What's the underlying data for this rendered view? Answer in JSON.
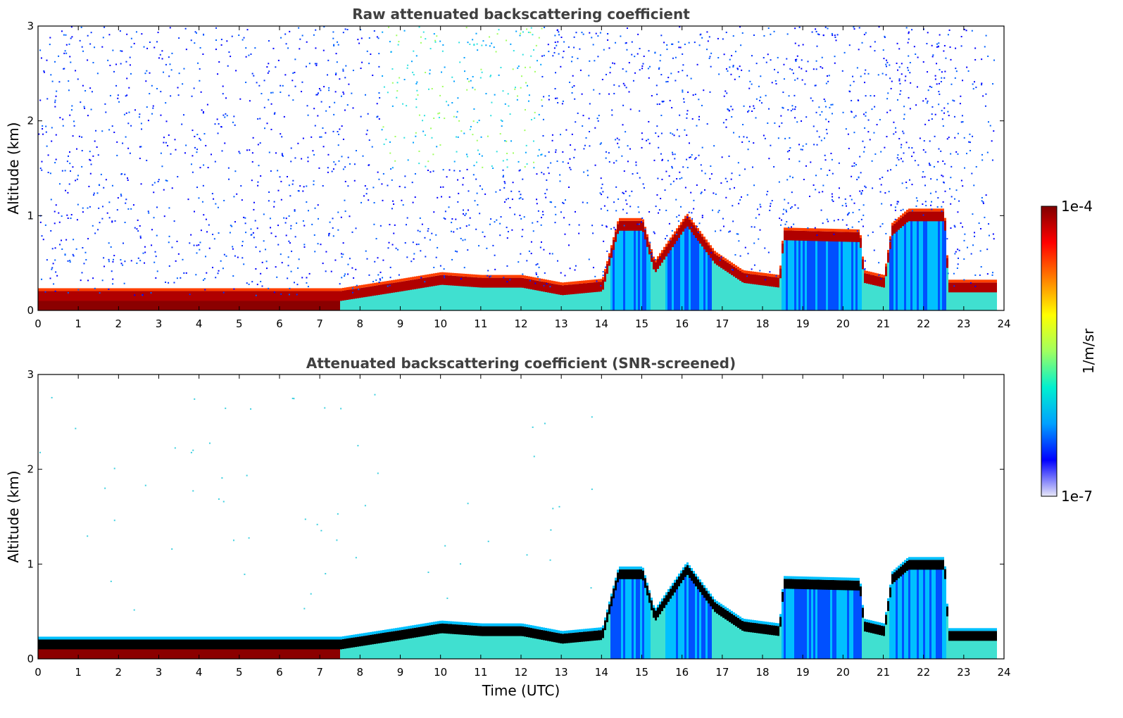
{
  "chart_data": [
    {
      "type": "heatmap",
      "title": "Raw attenuated backscattering coefficient",
      "xlabel": "",
      "ylabel": "Altitude (km)",
      "xlim": [
        0,
        24
      ],
      "ylim": [
        0,
        3
      ],
      "xticks": [
        "0",
        "1",
        "2",
        "3",
        "4",
        "5",
        "6",
        "7",
        "8",
        "9",
        "10",
        "11",
        "12",
        "13",
        "14",
        "15",
        "16",
        "17",
        "18",
        "19",
        "20",
        "21",
        "22",
        "23",
        "24"
      ],
      "yticks": [
        "0",
        "1",
        "2",
        "3"
      ],
      "noise": "high",
      "layer_top_km": [
        [
          0,
          0.16
        ],
        [
          7.5,
          0.16
        ],
        [
          9,
          0.26
        ],
        [
          10,
          0.33
        ],
        [
          11,
          0.3
        ],
        [
          12,
          0.3
        ],
        [
          13,
          0.22
        ],
        [
          14,
          0.26
        ],
        [
          14.4,
          0.9
        ],
        [
          15,
          0.9
        ],
        [
          15.3,
          0.45
        ],
        [
          16.1,
          0.95
        ],
        [
          16.8,
          0.55
        ],
        [
          17.5,
          0.35
        ],
        [
          18.4,
          0.3
        ],
        [
          18.5,
          0.8
        ],
        [
          20.4,
          0.78
        ],
        [
          20.5,
          0.35
        ],
        [
          21,
          0.3
        ],
        [
          21.2,
          0.85
        ],
        [
          21.6,
          1.0
        ],
        [
          22.5,
          1.0
        ],
        [
          22.6,
          0.25
        ],
        [
          23.8,
          0.25
        ]
      ],
      "colormap": "jet",
      "log_scale": true,
      "grid": false
    },
    {
      "type": "heatmap",
      "title": "Attenuated backscattering coefficient (SNR-screened)",
      "xlabel": "Time (UTC)",
      "ylabel": "Altitude (km)",
      "xlim": [
        0,
        24
      ],
      "ylim": [
        0,
        3
      ],
      "xticks": [
        "0",
        "1",
        "2",
        "3",
        "4",
        "5",
        "6",
        "7",
        "8",
        "9",
        "10",
        "11",
        "12",
        "13",
        "14",
        "15",
        "16",
        "17",
        "18",
        "19",
        "20",
        "21",
        "22",
        "23",
        "24"
      ],
      "yticks": [
        "0",
        "1",
        "2",
        "3"
      ],
      "noise": "screened",
      "colormap": "jet",
      "log_scale": true,
      "grid": false
    }
  ],
  "colorbar": {
    "label": "1/m/sr",
    "max_label": "1e-4",
    "min_label": "1e-7",
    "colors": [
      "#e8e8f8",
      "#0000ff",
      "#00a0ff",
      "#00f0d0",
      "#a0ff60",
      "#ffff00",
      "#ff8000",
      "#ff0000",
      "#800000"
    ]
  }
}
